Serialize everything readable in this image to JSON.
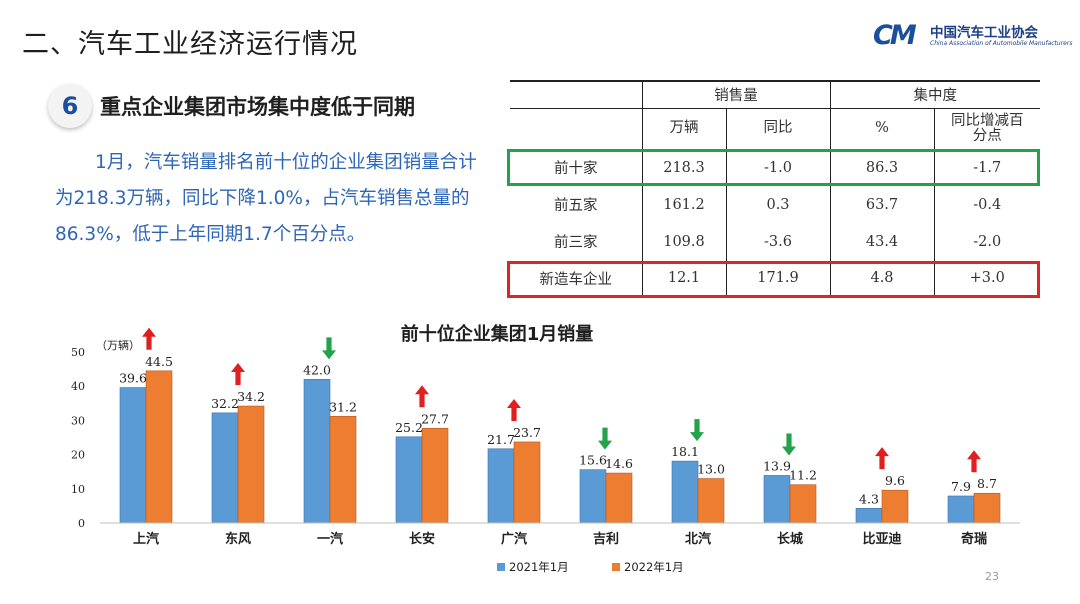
{
  "header": {
    "title": "二、汽车工业经济运行情况"
  },
  "logo": {
    "mark": "CAAM",
    "name_cn": "中国汽车工业协会",
    "name_en": "China Association of Automobile Manufacturers"
  },
  "section": {
    "number": "6",
    "title": "重点企业集团市场集中度低于同期"
  },
  "summary": "1月，汽车销量排名前十位的企业集团销量合计为218.3万辆，同比下降1.0%，占汽车销售总量的86.3%，低于上年同期1.7个百分点。",
  "table": {
    "group_headers": [
      "销售量",
      "集中度"
    ],
    "sub_headers": [
      "万辆",
      "同比",
      "%",
      "同比增减百分点"
    ],
    "rows": [
      {
        "label": "前十家",
        "cells": [
          "218.3",
          "-1.0",
          "86.3",
          "-1.7"
        ]
      },
      {
        "label": "前五家",
        "cells": [
          "161.2",
          "0.3",
          "63.7",
          "-0.4"
        ]
      },
      {
        "label": "前三家",
        "cells": [
          "109.8",
          "-3.6",
          "43.4",
          "-2.0"
        ]
      },
      {
        "label": "新造车企业",
        "cells": [
          "12.1",
          "171.9",
          "4.8",
          "+3.0"
        ]
      }
    ]
  },
  "chart_data": {
    "type": "bar",
    "title": "前十位企业集团1月销量",
    "ylabel": "（万辆）",
    "ylim": [
      0,
      50
    ],
    "yticks": [
      0,
      10,
      20,
      30,
      40,
      50
    ],
    "categories": [
      "上汽",
      "东风",
      "一汽",
      "长安",
      "广汽",
      "吉利",
      "北汽",
      "长城",
      "比亚迪",
      "奇瑞"
    ],
    "series": [
      {
        "name": "2021年1月",
        "color": "#5b9bd5",
        "values": [
          39.6,
          32.2,
          42.0,
          25.2,
          21.7,
          15.6,
          18.1,
          13.9,
          4.3,
          7.9
        ]
      },
      {
        "name": "2022年1月",
        "color": "#ed7d31",
        "values": [
          44.5,
          34.2,
          31.2,
          27.7,
          23.7,
          14.6,
          13.0,
          11.2,
          9.6,
          8.7
        ]
      }
    ],
    "trend_arrows": [
      "up",
      "up",
      "down",
      "up",
      "up",
      "down",
      "down",
      "down",
      "up",
      "up"
    ],
    "arrow_colors": {
      "up": "#e02020",
      "down": "#22a34a"
    },
    "legend_position": "bottom"
  },
  "page_number": "23"
}
